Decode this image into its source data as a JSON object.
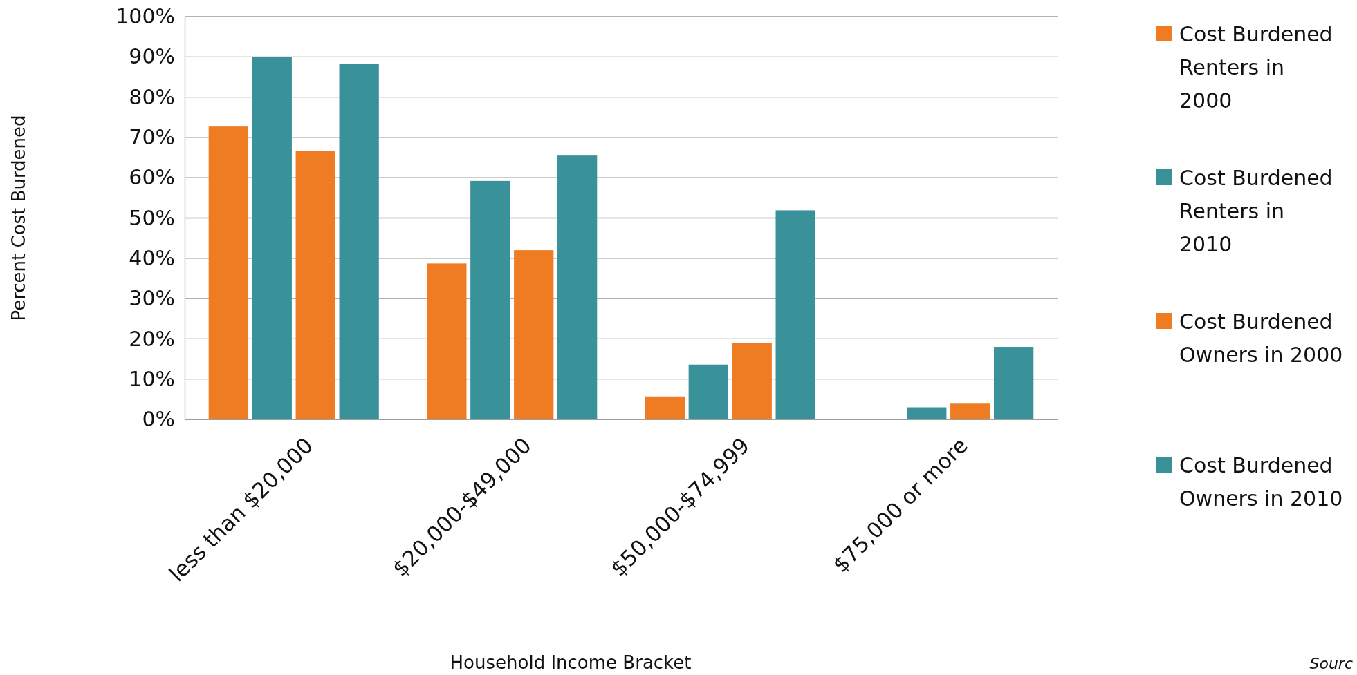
{
  "chart_data": {
    "type": "bar",
    "xlabel": "Household Income Bracket",
    "ylabel": "Percent Cost Burdened",
    "categories": [
      "less than $20,000",
      "$20,000-$49,000",
      "$50,000-$74,999",
      "$75,000 or more"
    ],
    "series": [
      {
        "name": "Cost Burdened Renters in 2000",
        "color": "#ef7b22",
        "values": [
          72.7,
          38.7,
          5.7,
          null
        ]
      },
      {
        "name": "Cost Burdened Renters in 2010",
        "color": "#39929a",
        "values": [
          89.9,
          59.2,
          13.6,
          3.0
        ]
      },
      {
        "name": "Cost Burdened Owners in 2000",
        "color": "#ef7b22",
        "values": [
          66.6,
          42.0,
          19.0,
          3.9
        ]
      },
      {
        "name": "Cost Burdened Owners in 2010",
        "color": "#39929a",
        "values": [
          88.2,
          65.5,
          51.9,
          18.0
        ]
      }
    ],
    "ylim": [
      0,
      100
    ],
    "yticks": [
      {
        "value": 0,
        "label": "0%"
      },
      {
        "value": 10,
        "label": "10%"
      },
      {
        "value": 20,
        "label": "20%"
      },
      {
        "value": 30,
        "label": "30%"
      },
      {
        "value": 40,
        "label": "40%"
      },
      {
        "value": 50,
        "label": "50%"
      },
      {
        "value": 60,
        "label": "60%"
      },
      {
        "value": 70,
        "label": "70%"
      },
      {
        "value": 80,
        "label": "80%"
      },
      {
        "value": 90,
        "label": "90%"
      },
      {
        "value": 100,
        "label": "100%"
      }
    ],
    "grid": "y",
    "legend": "right",
    "annotations": [
      "Sourc"
    ]
  }
}
